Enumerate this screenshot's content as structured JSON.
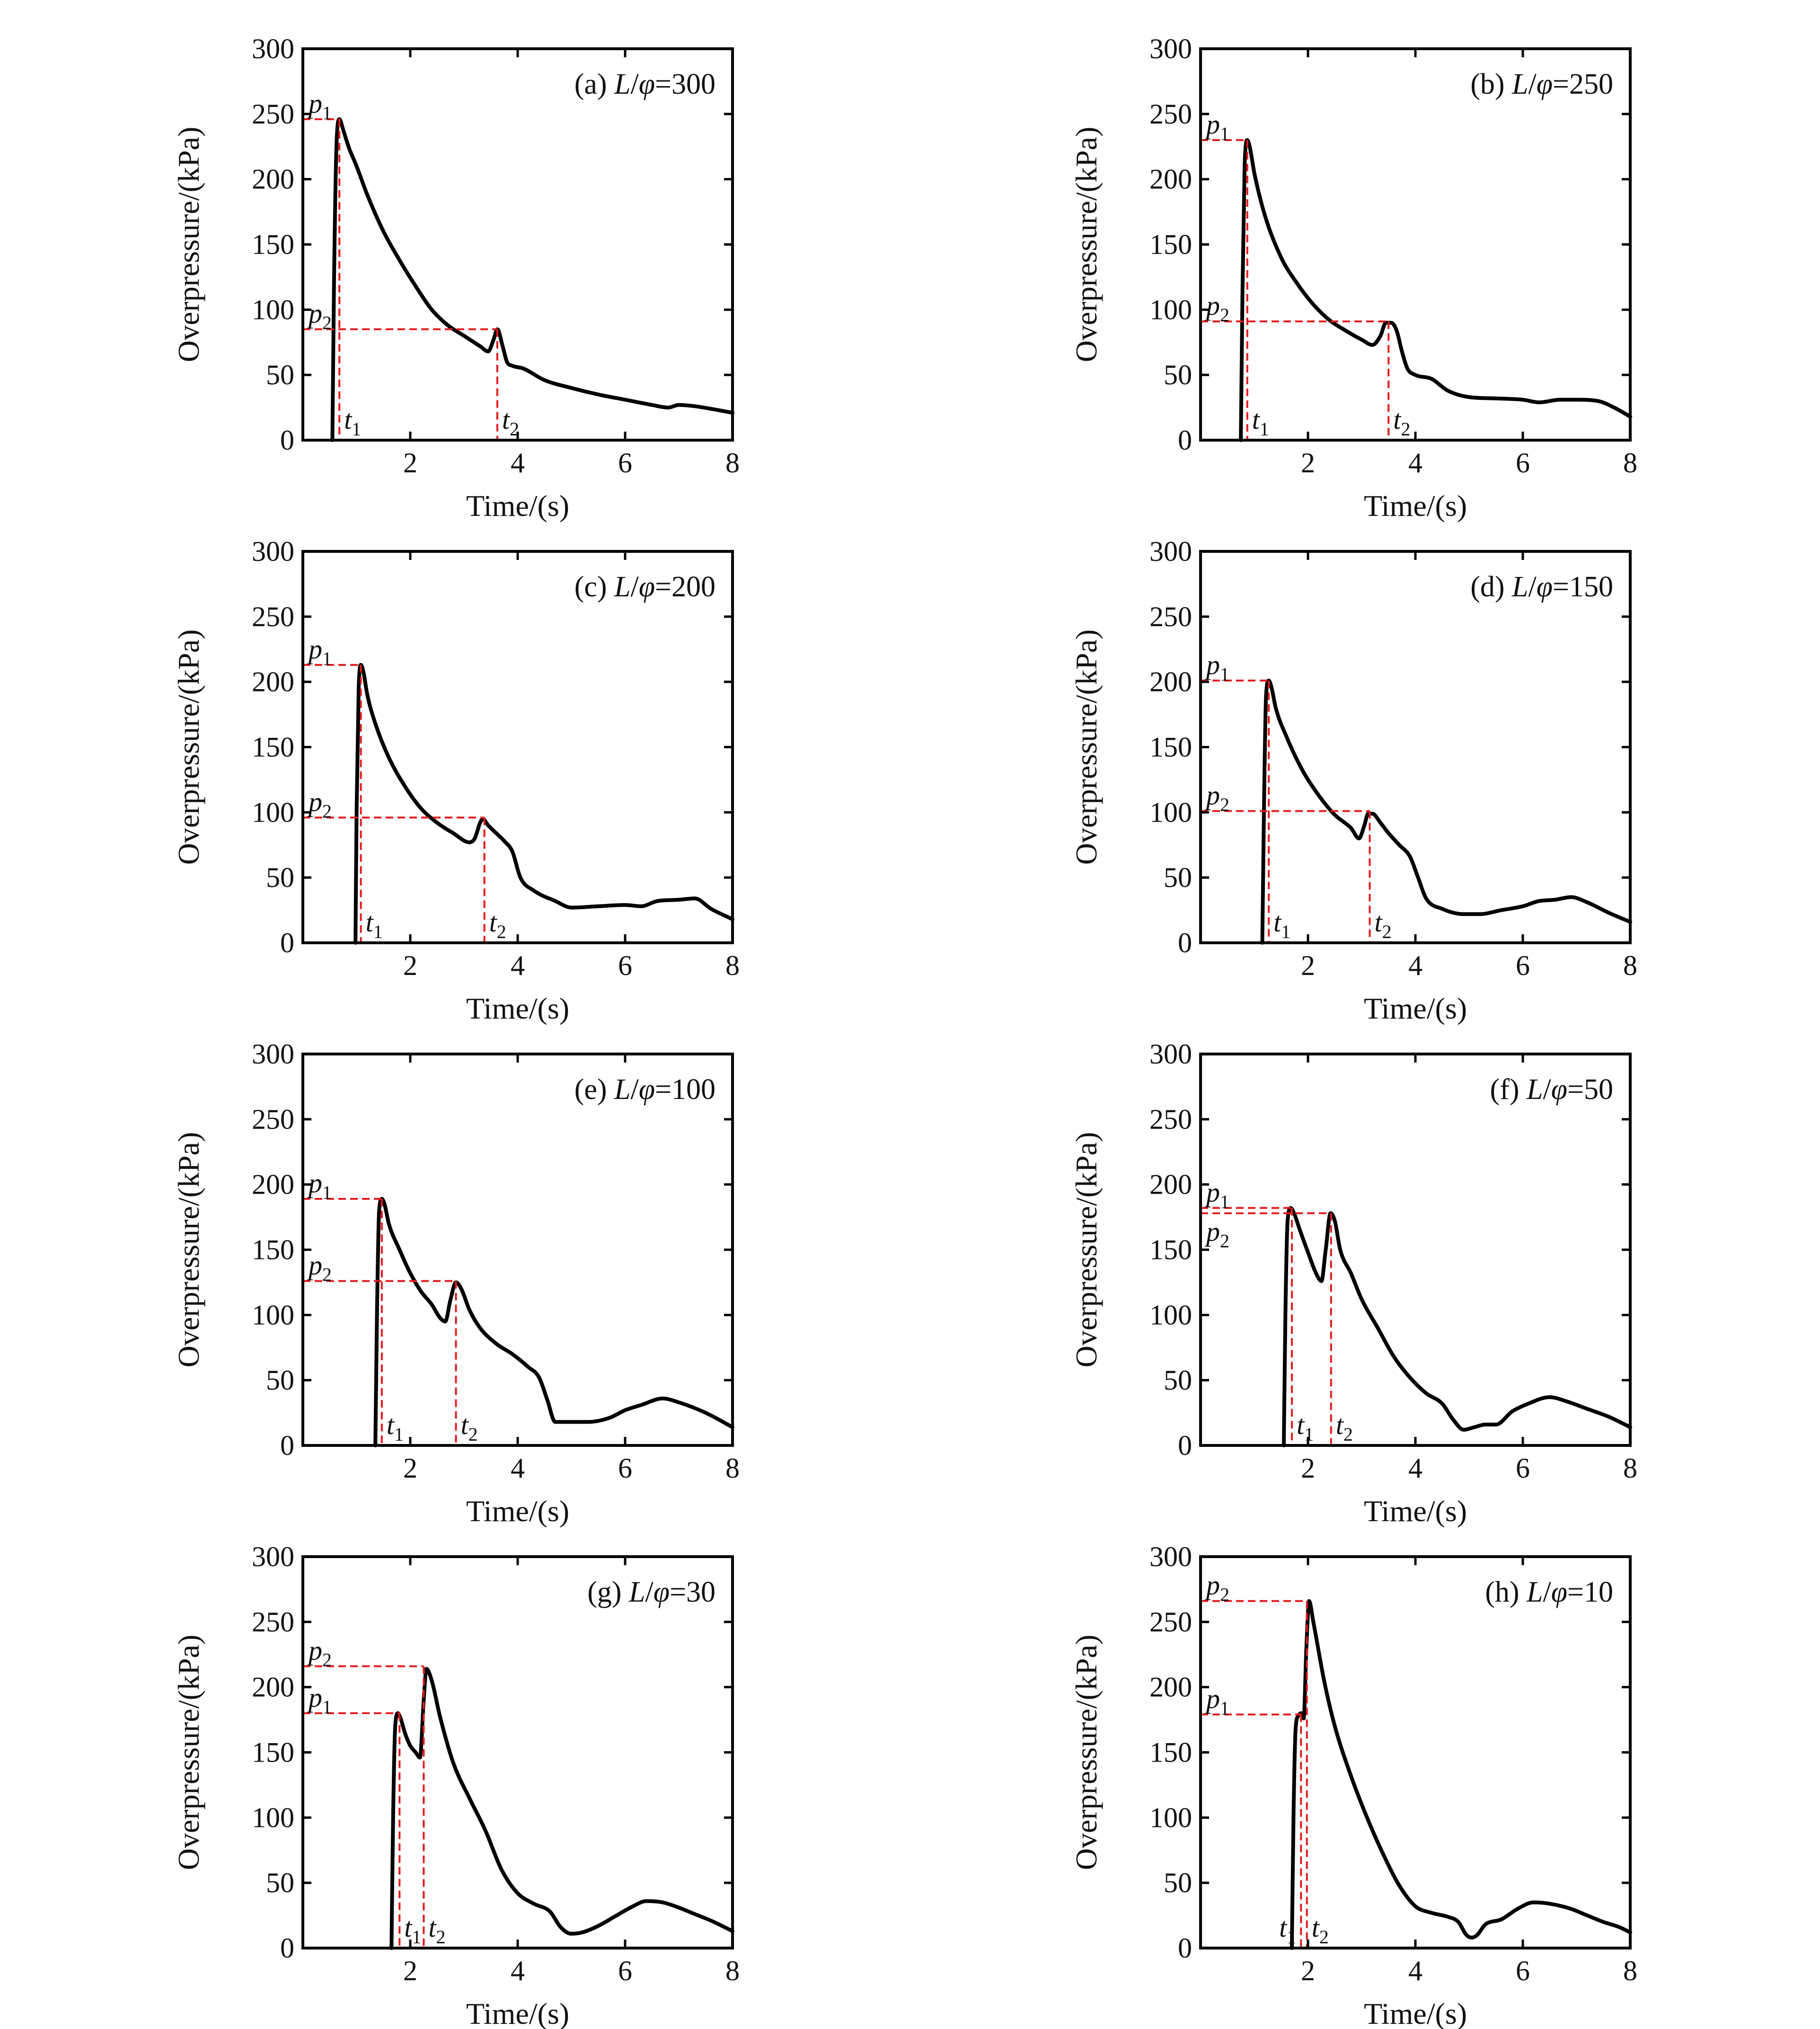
{
  "colors": {
    "curve": "#000000",
    "guide": "#e41a1c",
    "axis": "#000000",
    "background": "#ffffff"
  },
  "chart_data": [
    {
      "type": "line",
      "panel_label": "(a)",
      "title_var": "L/φ=300",
      "xlabel": "Time/(s)",
      "ylabel": "Overpressure/(kPa)",
      "xlim": [
        0,
        8
      ],
      "ylim": [
        0,
        300
      ],
      "xticks": [
        2,
        4,
        6,
        8
      ],
      "yticks": [
        0,
        50,
        100,
        150,
        200,
        250,
        300
      ],
      "series": [
        {
          "name": "overpressure",
          "x": [
            0.55,
            0.58,
            0.63,
            0.68,
            0.75,
            0.85,
            1.0,
            1.2,
            1.5,
            1.8,
            2.1,
            2.4,
            2.7,
            3.0,
            3.3,
            3.45,
            3.55,
            3.62,
            3.72,
            3.8,
            3.9,
            4.1,
            4.5,
            5.0,
            5.5,
            6.0,
            6.5,
            6.8,
            7.0,
            7.3,
            7.6,
            8.0
          ],
          "y": [
            0,
            120,
            230,
            246,
            238,
            225,
            210,
            188,
            160,
            138,
            118,
            100,
            88,
            80,
            72,
            68,
            77,
            85,
            72,
            60,
            57,
            55,
            46,
            40,
            35,
            31,
            27,
            25,
            27,
            26,
            24,
            21
          ]
        }
      ],
      "markers": [
        {
          "label": "p",
          "sub": "1",
          "value": 246
        },
        {
          "label": "p",
          "sub": "2",
          "value": 85
        },
        {
          "label": "t",
          "sub": "1",
          "value": 0.68
        },
        {
          "label": "t",
          "sub": "2",
          "value": 3.62
        }
      ]
    },
    {
      "type": "line",
      "panel_label": "(b)",
      "title_var": "L/φ=250",
      "xlabel": "Time/(s)",
      "ylabel": "Overpressure/(kPa)",
      "xlim": [
        0,
        8
      ],
      "ylim": [
        0,
        300
      ],
      "xticks": [
        2,
        4,
        6,
        8
      ],
      "yticks": [
        0,
        50,
        100,
        150,
        200,
        250,
        300
      ],
      "series": [
        {
          "name": "overpressure",
          "x": [
            0.75,
            0.78,
            0.82,
            0.87,
            0.92,
            1.0,
            1.2,
            1.5,
            1.8,
            2.1,
            2.4,
            2.7,
            3.0,
            3.2,
            3.35,
            3.45,
            3.55,
            3.65,
            3.75,
            3.85,
            4.0,
            4.3,
            4.6,
            5.0,
            5.5,
            6.0,
            6.3,
            6.7,
            7.0,
            7.4,
            7.7,
            8.0
          ],
          "y": [
            0,
            110,
            210,
            230,
            224,
            205,
            172,
            140,
            120,
            104,
            92,
            84,
            77,
            73,
            80,
            90,
            90,
            84,
            68,
            55,
            50,
            47,
            38,
            33,
            32,
            31,
            29,
            31,
            31,
            30,
            25,
            18
          ]
        }
      ],
      "markers": [
        {
          "label": "p",
          "sub": "1",
          "value": 230
        },
        {
          "label": "p",
          "sub": "2",
          "value": 91
        },
        {
          "label": "t",
          "sub": "1",
          "value": 0.87
        },
        {
          "label": "t",
          "sub": "2",
          "value": 3.5
        }
      ]
    },
    {
      "type": "line",
      "panel_label": "(c)",
      "title_var": "L/φ=200",
      "xlabel": "Time/(s)",
      "ylabel": "Overpressure/(kPa)",
      "xlim": [
        0,
        8
      ],
      "ylim": [
        0,
        300
      ],
      "xticks": [
        2,
        4,
        6,
        8
      ],
      "yticks": [
        0,
        50,
        100,
        150,
        200,
        250,
        300
      ],
      "series": [
        {
          "name": "overpressure",
          "x": [
            0.98,
            1.0,
            1.04,
            1.08,
            1.13,
            1.2,
            1.35,
            1.6,
            1.9,
            2.2,
            2.5,
            2.8,
            3.1,
            3.2,
            3.3,
            3.35,
            3.45,
            3.6,
            3.75,
            3.9,
            4.05,
            4.3,
            4.7,
            5.0,
            5.5,
            6.0,
            6.3,
            6.6,
            7.0,
            7.3,
            7.6,
            8.0
          ],
          "y": [
            0,
            100,
            195,
            213,
            207,
            190,
            168,
            142,
            120,
            103,
            92,
            84,
            77,
            80,
            92,
            95,
            90,
            84,
            78,
            70,
            50,
            40,
            32,
            27,
            28,
            29,
            28,
            32,
            33,
            34,
            26,
            18
          ]
        }
      ],
      "markers": [
        {
          "label": "p",
          "sub": "1",
          "value": 213
        },
        {
          "label": "p",
          "sub": "2",
          "value": 96
        },
        {
          "label": "t",
          "sub": "1",
          "value": 1.08
        },
        {
          "label": "t",
          "sub": "2",
          "value": 3.38
        }
      ]
    },
    {
      "type": "line",
      "panel_label": "(d)",
      "title_var": "L/φ=150",
      "xlabel": "Time/(s)",
      "ylabel": "Overpressure/(kPa)",
      "xlim": [
        0,
        8
      ],
      "ylim": [
        0,
        300
      ],
      "xticks": [
        2,
        4,
        6,
        8
      ],
      "yticks": [
        0,
        50,
        100,
        150,
        200,
        250,
        300
      ],
      "series": [
        {
          "name": "overpressure",
          "x": [
            1.15,
            1.18,
            1.22,
            1.27,
            1.32,
            1.4,
            1.6,
            1.9,
            2.2,
            2.5,
            2.8,
            2.95,
            3.05,
            3.12,
            3.2,
            3.35,
            3.5,
            3.7,
            3.9,
            4.05,
            4.2,
            4.5,
            4.9,
            5.2,
            5.6,
            6.0,
            6.3,
            6.6,
            6.9,
            7.2,
            7.6,
            8.0
          ],
          "y": [
            0,
            100,
            190,
            201,
            196,
            180,
            158,
            132,
            113,
            98,
            88,
            80,
            90,
            99,
            99,
            92,
            84,
            75,
            66,
            50,
            34,
            26,
            22,
            22,
            25,
            28,
            32,
            33,
            35,
            31,
            23,
            16
          ]
        }
      ],
      "markers": [
        {
          "label": "p",
          "sub": "1",
          "value": 201
        },
        {
          "label": "p",
          "sub": "2",
          "value": 101
        },
        {
          "label": "t",
          "sub": "1",
          "value": 1.27
        },
        {
          "label": "t",
          "sub": "2",
          "value": 3.15
        }
      ]
    },
    {
      "type": "line",
      "panel_label": "(e)",
      "title_var": "L/φ=100",
      "xlabel": "Time/(s)",
      "ylabel": "Overpressure/(kPa)",
      "xlim": [
        0,
        8
      ],
      "ylim": [
        0,
        300
      ],
      "xticks": [
        2,
        4,
        6,
        8
      ],
      "yticks": [
        0,
        50,
        100,
        150,
        200,
        250,
        300
      ],
      "series": [
        {
          "name": "overpressure",
          "x": [
            1.35,
            1.38,
            1.42,
            1.47,
            1.52,
            1.6,
            1.8,
            2.0,
            2.2,
            2.4,
            2.55,
            2.65,
            2.75,
            2.85,
            2.95,
            3.1,
            3.3,
            3.6,
            3.9,
            4.2,
            4.4,
            4.55,
            4.7,
            5.0,
            5.3,
            5.7,
            6.0,
            6.3,
            6.7,
            7.0,
            7.5,
            8.0
          ],
          "y": [
            0,
            100,
            180,
            189,
            185,
            170,
            150,
            132,
            118,
            108,
            98,
            95,
            112,
            125,
            120,
            104,
            90,
            78,
            70,
            60,
            52,
            35,
            18,
            18,
            18,
            21,
            27,
            31,
            36,
            33,
            25,
            14
          ]
        }
      ],
      "markers": [
        {
          "label": "p",
          "sub": "1",
          "value": 189
        },
        {
          "label": "p",
          "sub": "2",
          "value": 126
        },
        {
          "label": "t",
          "sub": "1",
          "value": 1.47
        },
        {
          "label": "t",
          "sub": "2",
          "value": 2.85
        }
      ]
    },
    {
      "type": "line",
      "panel_label": "(f)",
      "title_var": "L/φ=50",
      "xlabel": "Time/(s)",
      "ylabel": "Overpressure/(kPa)",
      "xlim": [
        0,
        8
      ],
      "ylim": [
        0,
        300
      ],
      "xticks": [
        2,
        4,
        6,
        8
      ],
      "yticks": [
        0,
        50,
        100,
        150,
        200,
        250,
        300
      ],
      "series": [
        {
          "name": "overpressure",
          "x": [
            1.55,
            1.58,
            1.62,
            1.68,
            1.74,
            1.85,
            2.0,
            2.15,
            2.25,
            2.33,
            2.42,
            2.5,
            2.6,
            2.8,
            3.0,
            3.3,
            3.6,
            3.9,
            4.2,
            4.5,
            4.7,
            4.9,
            5.1,
            5.3,
            5.5,
            5.8,
            6.1,
            6.5,
            6.8,
            7.2,
            7.6,
            8.0
          ],
          "y": [
            0,
            100,
            172,
            182,
            178,
            165,
            148,
            132,
            126,
            150,
            178,
            172,
            150,
            132,
            112,
            90,
            68,
            52,
            40,
            32,
            20,
            12,
            14,
            16,
            16,
            26,
            32,
            37,
            34,
            28,
            22,
            14
          ]
        }
      ],
      "markers": [
        {
          "label": "p",
          "sub": "1",
          "value": 182
        },
        {
          "label": "p",
          "sub": "2",
          "value": 178
        },
        {
          "label": "t",
          "sub": "1",
          "value": 1.7
        },
        {
          "label": "t",
          "sub": "2",
          "value": 2.43
        }
      ]
    },
    {
      "type": "line",
      "panel_label": "(g)",
      "title_var": "L/φ=30",
      "xlabel": "Time/(s)",
      "ylabel": "Overpressure/(kPa)",
      "xlim": [
        0,
        8
      ],
      "ylim": [
        0,
        300
      ],
      "xticks": [
        2,
        4,
        6,
        8
      ],
      "yticks": [
        0,
        50,
        100,
        150,
        200,
        250,
        300
      ],
      "series": [
        {
          "name": "overpressure",
          "x": [
            1.65,
            1.68,
            1.72,
            1.77,
            1.82,
            1.9,
            2.0,
            2.1,
            2.18,
            2.25,
            2.3,
            2.4,
            2.55,
            2.8,
            3.1,
            3.4,
            3.7,
            4.0,
            4.3,
            4.6,
            4.8,
            5.0,
            5.2,
            5.5,
            5.8,
            6.1,
            6.4,
            6.7,
            7.0,
            7.3,
            7.6,
            8.0
          ],
          "y": [
            0,
            100,
            170,
            180,
            176,
            165,
            155,
            150,
            146,
            190,
            214,
            205,
            178,
            142,
            115,
            90,
            60,
            42,
            34,
            28,
            16,
            11,
            12,
            17,
            24,
            31,
            36,
            35,
            31,
            26,
            21,
            13
          ]
        }
      ],
      "markers": [
        {
          "label": "p",
          "sub": "1",
          "value": 180
        },
        {
          "label": "p",
          "sub": "2",
          "value": 216
        },
        {
          "label": "t",
          "sub": "1",
          "value": 1.8
        },
        {
          "label": "t",
          "sub": "2",
          "value": 2.25
        }
      ]
    },
    {
      "type": "line",
      "panel_label": "(h)",
      "title_var": "L/φ=10",
      "xlabel": "Time/(s)",
      "ylabel": "Overpressure/(kPa)",
      "xlim": [
        0,
        8
      ],
      "ylim": [
        0,
        300
      ],
      "xticks": [
        2,
        4,
        6,
        8
      ],
      "yticks": [
        0,
        50,
        100,
        150,
        200,
        250,
        300
      ],
      "series": [
        {
          "name": "overpressure",
          "x": [
            1.7,
            1.73,
            1.77,
            1.82,
            1.87,
            1.92,
            1.97,
            2.02,
            2.1,
            2.3,
            2.5,
            2.8,
            3.1,
            3.4,
            3.7,
            4.0,
            4.3,
            4.6,
            4.8,
            4.95,
            5.05,
            5.15,
            5.3,
            5.6,
            5.9,
            6.2,
            6.5,
            6.9,
            7.2,
            7.5,
            7.8,
            8.0
          ],
          "y": [
            0,
            100,
            168,
            178,
            180,
            176,
            230,
            266,
            250,
            205,
            170,
            132,
            100,
            72,
            48,
            32,
            27,
            24,
            20,
            10,
            8,
            10,
            18,
            22,
            30,
            35,
            34,
            30,
            25,
            20,
            16,
            12
          ]
        }
      ],
      "markers": [
        {
          "label": "p",
          "sub": "1",
          "value": 179
        },
        {
          "label": "p",
          "sub": "2",
          "value": 266
        },
        {
          "label": "t",
          "sub": "1",
          "value": 1.87
        },
        {
          "label": "t",
          "sub": "2",
          "value": 1.98
        }
      ]
    }
  ]
}
